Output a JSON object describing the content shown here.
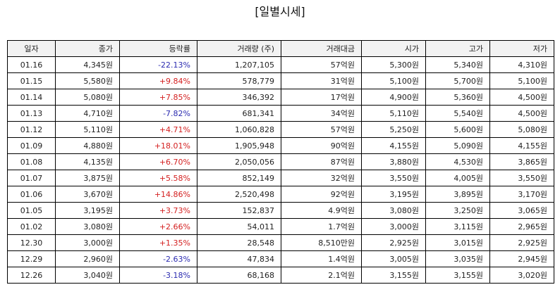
{
  "title": "[일별시세]",
  "columns": [
    "일자",
    "종가",
    "등락률",
    "거래량 (주)",
    "거래대금",
    "시가",
    "고가",
    "저가"
  ],
  "colors": {
    "up": "#d42020",
    "down": "#2b2bb0"
  },
  "rows": [
    {
      "date": "01.16",
      "close": "4,345원",
      "change": "-22.13%",
      "dir": "down",
      "volume": "1,207,105",
      "amount": "57억원",
      "open": "5,300원",
      "high": "5,340원",
      "low": "4,310원"
    },
    {
      "date": "01.15",
      "close": "5,580원",
      "change": "+9.84%",
      "dir": "up",
      "volume": "578,779",
      "amount": "31억원",
      "open": "5,100원",
      "high": "5,700원",
      "low": "5,100원"
    },
    {
      "date": "01.14",
      "close": "5,080원",
      "change": "+7.85%",
      "dir": "up",
      "volume": "346,392",
      "amount": "17억원",
      "open": "4,900원",
      "high": "5,360원",
      "low": "4,500원"
    },
    {
      "date": "01.13",
      "close": "4,710원",
      "change": "-7.82%",
      "dir": "down",
      "volume": "681,341",
      "amount": "34억원",
      "open": "5,110원",
      "high": "5,540원",
      "low": "4,500원"
    },
    {
      "date": "01.12",
      "close": "5,110원",
      "change": "+4.71%",
      "dir": "up",
      "volume": "1,060,828",
      "amount": "57억원",
      "open": "5,250원",
      "high": "5,600원",
      "low": "5,080원"
    },
    {
      "date": "01.09",
      "close": "4,880원",
      "change": "+18.01%",
      "dir": "up",
      "volume": "1,905,948",
      "amount": "90억원",
      "open": "4,155원",
      "high": "5,090원",
      "low": "4,155원"
    },
    {
      "date": "01.08",
      "close": "4,135원",
      "change": "+6.70%",
      "dir": "up",
      "volume": "2,050,056",
      "amount": "87억원",
      "open": "3,880원",
      "high": "4,530원",
      "low": "3,865원"
    },
    {
      "date": "01.07",
      "close": "3,875원",
      "change": "+5.58%",
      "dir": "up",
      "volume": "852,149",
      "amount": "32억원",
      "open": "3,550원",
      "high": "4,005원",
      "low": "3,550원"
    },
    {
      "date": "01.06",
      "close": "3,670원",
      "change": "+14.86%",
      "dir": "up",
      "volume": "2,520,498",
      "amount": "92억원",
      "open": "3,195원",
      "high": "3,895원",
      "low": "3,170원"
    },
    {
      "date": "01.05",
      "close": "3,195원",
      "change": "+3.73%",
      "dir": "up",
      "volume": "152,837",
      "amount": "4.9억원",
      "open": "3,080원",
      "high": "3,250원",
      "low": "3,065원"
    },
    {
      "date": "01.02",
      "close": "3,080원",
      "change": "+2.66%",
      "dir": "up",
      "volume": "54,011",
      "amount": "1.7억원",
      "open": "3,000원",
      "high": "3,115원",
      "low": "2,965원"
    },
    {
      "date": "12.30",
      "close": "3,000원",
      "change": "+1.35%",
      "dir": "up",
      "volume": "28,548",
      "amount": "8,510만원",
      "open": "2,925원",
      "high": "3,015원",
      "low": "2,925원"
    },
    {
      "date": "12.29",
      "close": "2,960원",
      "change": "-2.63%",
      "dir": "down",
      "volume": "47,834",
      "amount": "1.4억원",
      "open": "3,005원",
      "high": "3,035원",
      "low": "2,945원"
    },
    {
      "date": "12.26",
      "close": "3,040원",
      "change": "-3.18%",
      "dir": "down",
      "volume": "68,168",
      "amount": "2.1억원",
      "open": "3,155원",
      "high": "3,155원",
      "low": "3,020원"
    }
  ]
}
